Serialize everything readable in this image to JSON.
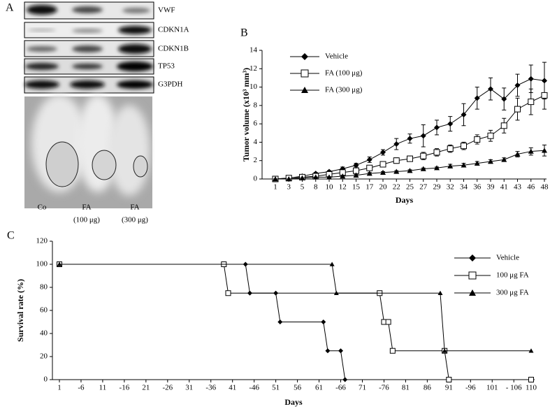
{
  "panel_a": {
    "label": "A",
    "blot_labels": [
      "VWF",
      "CDKN1A",
      "CDKN1B",
      "TP53",
      "G3PDH"
    ],
    "group_labels": [
      [
        "Co"
      ],
      [
        "FA",
        "(100 μg)"
      ],
      [
        "FA",
        "(300 μg)"
      ]
    ]
  },
  "chart_data": [
    {
      "type": "line",
      "panel": "B",
      "x_label": "Days",
      "y_label": "Tumor volume (x10³ mm³)",
      "categories": [
        "1",
        "3",
        "5",
        "8",
        "10",
        "12",
        "15",
        "17",
        "20",
        "22",
        "25",
        "27",
        "29",
        "32",
        "34",
        "36",
        "39",
        "41",
        "43",
        "46",
        "48"
      ],
      "ylim": [
        0,
        14
      ],
      "yticks": [
        0,
        2,
        4,
        6,
        8,
        10,
        12,
        14
      ],
      "legend": "top-left",
      "series": [
        {
          "name": "Vehicle",
          "color": "#000000",
          "marker": "diamond",
          "values": [
            0,
            0.1,
            0.3,
            0.6,
            0.8,
            1.1,
            1.5,
            2.1,
            2.9,
            3.8,
            4.4,
            4.7,
            5.6,
            6.0,
            7.0,
            8.8,
            9.8,
            8.7,
            10.2,
            10.9,
            10.7
          ],
          "errors": [
            0,
            0.1,
            0.1,
            0.1,
            0.1,
            0.2,
            0.2,
            0.3,
            0.3,
            0.6,
            0.5,
            1.2,
            0.8,
            0.8,
            1.2,
            1.2,
            1.2,
            1.2,
            1.2,
            1.5,
            2.0
          ]
        },
        {
          "name": "FA (100 μg)",
          "color": "#000000",
          "marker": "open-square",
          "values": [
            0,
            0.1,
            0.2,
            0.3,
            0.5,
            0.7,
            0.9,
            1.2,
            1.6,
            2.0,
            2.2,
            2.5,
            2.9,
            3.3,
            3.6,
            4.3,
            4.7,
            5.8,
            7.6,
            8.4,
            9.1
          ],
          "errors": [
            0,
            0,
            0.1,
            0.1,
            0.1,
            0.1,
            0.2,
            0.2,
            0.2,
            0.3,
            0.3,
            0.4,
            0.4,
            0.4,
            0.4,
            0.5,
            0.6,
            0.8,
            1.2,
            1.4,
            1.5
          ]
        },
        {
          "name": "FA (300 μg)",
          "color": "#000000",
          "marker": "triangle",
          "values": [
            0,
            0,
            0.1,
            0.2,
            0.2,
            0.3,
            0.4,
            0.6,
            0.7,
            0.8,
            0.9,
            1.1,
            1.2,
            1.4,
            1.5,
            1.7,
            1.9,
            2.1,
            2.7,
            3.0,
            3.1
          ],
          "errors": [
            0,
            0,
            0,
            0,
            0.05,
            0.1,
            0.1,
            0.1,
            0.1,
            0.1,
            0.1,
            0.1,
            0.1,
            0.2,
            0.2,
            0.2,
            0.2,
            0.2,
            0.3,
            0.4,
            0.6
          ]
        }
      ]
    },
    {
      "type": "survival",
      "panel": "C",
      "x_label": "Days",
      "y_label": "Survival rate (%)",
      "xlim": [
        1,
        110
      ],
      "ylim": [
        0,
        120
      ],
      "yticks": [
        0,
        20,
        40,
        60,
        80,
        100,
        120
      ],
      "legend": "top-right",
      "xticks": [
        1,
        {
          "value": 6,
          "label": "-6"
        },
        11,
        {
          "value": 16,
          "label": "-16"
        },
        21,
        {
          "value": 26,
          "label": "-26"
        },
        31,
        {
          "value": 36,
          "label": "-36"
        },
        41,
        {
          "value": 46,
          "label": "-46"
        },
        51,
        56,
        61,
        {
          "value": 66,
          "label": "-66"
        },
        71,
        {
          "value": 76,
          "label": "-76"
        },
        81,
        86,
        91,
        {
          "value": 96,
          "label": "-96"
        },
        101,
        {
          "value": 106,
          "label": "- 106"
        },
        110
      ],
      "series": [
        {
          "name": "Vehicle",
          "color": "#000000",
          "marker": "diamond",
          "x": [
            1,
            44,
            45,
            51,
            52,
            62,
            63,
            66,
            67,
            110
          ],
          "values": [
            100,
            100,
            75,
            75,
            50,
            50,
            25,
            25,
            0,
            0
          ]
        },
        {
          "name": "100 μg FA",
          "color": "#000000",
          "marker": "open-square",
          "x": [
            1,
            39,
            40,
            75,
            76,
            77,
            78,
            90,
            91,
            110
          ],
          "values": [
            100,
            100,
            75,
            75,
            50,
            50,
            25,
            25,
            0,
            0
          ]
        },
        {
          "name": "300 μg FA",
          "color": "#000000",
          "marker": "triangle",
          "x": [
            1,
            64,
            65,
            89,
            90,
            110
          ],
          "values": [
            100,
            100,
            75,
            75,
            25,
            25
          ]
        }
      ]
    }
  ]
}
